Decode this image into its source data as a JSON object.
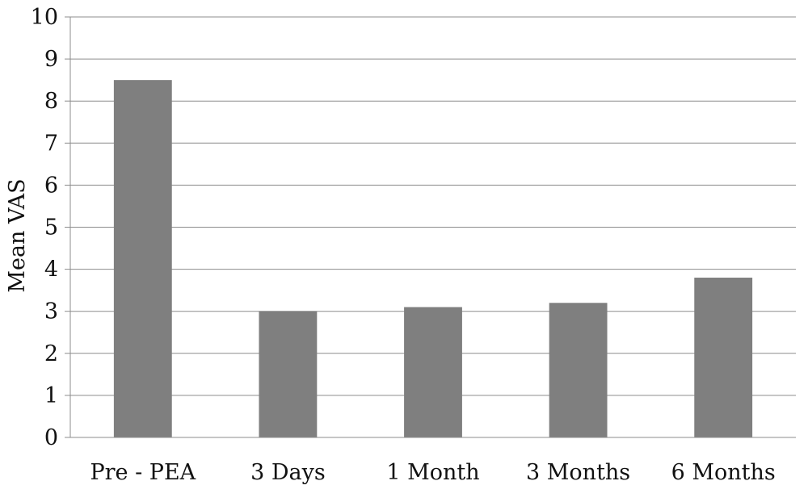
{
  "chart_data": {
    "type": "bar",
    "title": "",
    "xlabel": "",
    "ylabel": "Mean VAS",
    "categories": [
      "Pre - PEA",
      "3 Days",
      "1 Month",
      "3 Months",
      "6 Months"
    ],
    "values": [
      8.5,
      3.0,
      3.1,
      3.2,
      3.8
    ],
    "ylim": [
      0,
      10
    ],
    "yticks": [
      "0",
      "1",
      "2",
      "3",
      "4",
      "5",
      "6",
      "7",
      "8",
      "9",
      "10"
    ],
    "grid": true,
    "legend": "none",
    "bar_color": "#7f7f7f",
    "grid_color": "#8c8c8c"
  }
}
